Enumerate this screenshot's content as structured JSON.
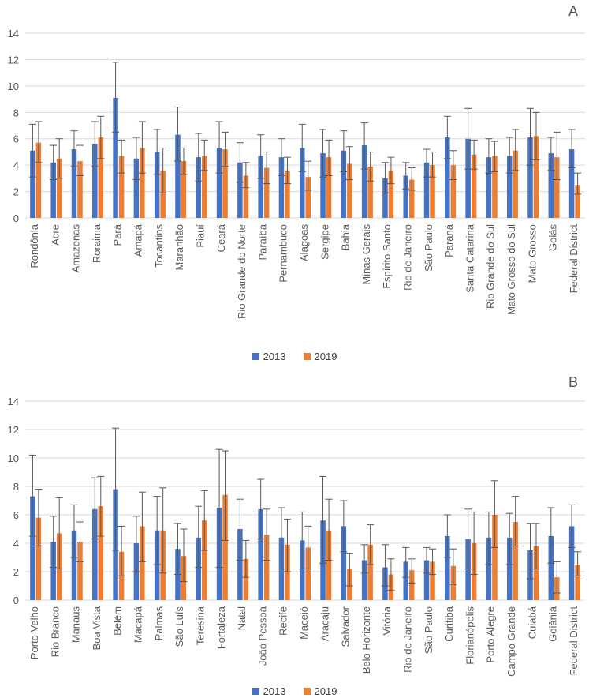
{
  "colors": {
    "s2013": "#4472C4",
    "s2019": "#ED7D31",
    "grid": "#D9D9D9",
    "text": "#595959",
    "err": "#595959"
  },
  "chart_data": [
    {
      "panel": "A",
      "type": "bar",
      "ylim": [
        0,
        14
      ],
      "yticks": [
        0,
        2,
        4,
        6,
        8,
        10,
        12,
        14
      ],
      "grid": true,
      "legend": "bottom-center",
      "categories": [
        "Rondônia",
        "Acre",
        "Amazonas",
        "Roraima",
        "Pará",
        "Amapá",
        "Tocantins",
        "Maranhão",
        "Piauí",
        "Ceará",
        "Rio Grande do Norte",
        "Paraíba",
        "Pernambuco",
        "Alagoas",
        "Sergipe",
        "Bahia",
        "Minas Gerais",
        "Espírito Santo",
        "Rio de Janeiro",
        "São Paulo",
        "Paraná",
        "Santa Catarina",
        "Rio Grande do Sul",
        "Mato Grosso do Sul",
        "Mato Grosso",
        "Goiás",
        "Federal District"
      ],
      "series": [
        {
          "name": "2013",
          "values": [
            5.1,
            4.2,
            5.2,
            5.6,
            9.1,
            4.5,
            5.0,
            6.3,
            4.6,
            5.3,
            4.2,
            4.7,
            4.6,
            5.3,
            4.9,
            5.1,
            5.5,
            3.0,
            3.2,
            4.2,
            6.1,
            6.0,
            4.6,
            4.7,
            6.1,
            4.9,
            5.2
          ],
          "err_low": [
            3.1,
            2.9,
            3.9,
            3.9,
            6.5,
            2.9,
            3.3,
            4.3,
            2.8,
            3.4,
            2.7,
            3.0,
            3.2,
            3.5,
            3.1,
            3.5,
            3.7,
            1.9,
            2.2,
            3.1,
            4.5,
            3.7,
            3.4,
            3.4,
            4.0,
            3.6,
            3.8
          ],
          "err_high": [
            7.1,
            5.5,
            6.6,
            7.3,
            11.8,
            6.1,
            6.7,
            8.4,
            6.4,
            7.3,
            5.7,
            6.3,
            6.0,
            7.1,
            6.7,
            6.6,
            7.2,
            4.2,
            4.2,
            5.2,
            7.7,
            8.3,
            6.0,
            6.1,
            8.3,
            6.1,
            6.7
          ]
        },
        {
          "name": "2019",
          "values": [
            5.7,
            4.5,
            4.3,
            6.1,
            4.7,
            5.3,
            3.6,
            4.3,
            4.7,
            5.2,
            3.2,
            3.8,
            3.6,
            3.1,
            4.6,
            4.1,
            3.9,
            3.6,
            2.9,
            4.0,
            4.0,
            4.8,
            4.7,
            5.1,
            6.2,
            4.6,
            2.5
          ],
          "err_low": [
            4.2,
            3.0,
            3.2,
            4.5,
            3.4,
            3.4,
            1.9,
            3.3,
            3.6,
            3.9,
            2.3,
            2.6,
            2.6,
            2.1,
            3.2,
            2.9,
            2.8,
            2.6,
            2.1,
            3.1,
            2.9,
            3.7,
            3.5,
            3.6,
            4.4,
            2.9,
            1.8
          ],
          "err_high": [
            7.3,
            6.0,
            5.5,
            7.7,
            5.9,
            7.3,
            5.3,
            5.3,
            5.9,
            6.5,
            4.2,
            5.0,
            4.6,
            4.3,
            5.9,
            5.4,
            5.0,
            4.6,
            3.8,
            5.0,
            5.1,
            5.9,
            5.8,
            6.7,
            8.0,
            6.5,
            3.4
          ]
        }
      ]
    },
    {
      "panel": "B",
      "type": "bar",
      "ylim": [
        0,
        14
      ],
      "yticks": [
        0,
        2,
        4,
        6,
        8,
        10,
        12,
        14
      ],
      "grid": true,
      "legend": "bottom-center",
      "categories": [
        "Porto Velho",
        "Rio Branco",
        "Manaus",
        "Boa Vista",
        "Belém",
        "Macapá",
        "Palmas",
        "São Luís",
        "Teresina",
        "Fortaleza",
        "Natal",
        "João Pessoa",
        "Recife",
        "Maceió",
        "Aracaju",
        "Salvador",
        "Belo Horizonte",
        "Vitória",
        "Rio de Janeiro",
        "São Paulo",
        "Curitiba",
        "Florianópolis",
        "Porto Alegre",
        "Campo Grande",
        "Cuiabá",
        "Goiânia",
        "Federal District"
      ],
      "series": [
        {
          "name": "2013",
          "values": [
            7.3,
            4.1,
            4.9,
            6.4,
            7.8,
            4.0,
            4.9,
            3.6,
            4.4,
            6.5,
            5.0,
            6.4,
            4.4,
            4.2,
            5.6,
            5.2,
            2.8,
            2.3,
            2.7,
            2.8,
            4.5,
            4.3,
            4.4,
            4.4,
            3.5,
            4.5,
            5.2
          ],
          "err_low": [
            4.5,
            2.3,
            3.0,
            4.3,
            3.5,
            2.0,
            2.5,
            1.8,
            2.3,
            2.3,
            2.8,
            4.3,
            2.2,
            2.2,
            2.6,
            3.4,
            1.9,
            1.0,
            1.6,
            1.9,
            3.0,
            2.2,
            2.5,
            2.5,
            1.5,
            2.6,
            3.7
          ],
          "err_high": [
            10.2,
            5.9,
            6.7,
            8.6,
            12.1,
            5.9,
            7.3,
            5.4,
            6.6,
            10.6,
            7.1,
            8.5,
            6.5,
            6.2,
            8.7,
            7.0,
            3.9,
            3.9,
            3.7,
            3.7,
            6.0,
            6.4,
            6.2,
            6.1,
            5.4,
            6.5,
            6.7
          ]
        },
        {
          "name": "2019",
          "values": [
            5.8,
            4.7,
            4.1,
            6.6,
            3.4,
            5.2,
            4.9,
            3.1,
            5.6,
            7.4,
            2.9,
            4.6,
            3.9,
            3.7,
            4.9,
            2.2,
            3.9,
            1.8,
            2.1,
            2.7,
            2.4,
            4.0,
            6.0,
            5.5,
            3.8,
            1.6,
            2.5
          ],
          "err_low": [
            3.8,
            2.2,
            2.7,
            4.5,
            1.7,
            2.7,
            1.9,
            1.3,
            3.5,
            4.2,
            1.6,
            2.8,
            2.0,
            2.2,
            2.8,
            1.0,
            2.5,
            0.7,
            1.2,
            1.8,
            1.1,
            1.8,
            3.7,
            3.8,
            2.2,
            0.5,
            1.7
          ],
          "err_high": [
            7.8,
            7.2,
            5.5,
            8.7,
            5.2,
            7.6,
            7.9,
            5.0,
            7.7,
            10.5,
            4.2,
            6.4,
            5.7,
            5.2,
            7.1,
            3.3,
            5.3,
            2.9,
            2.9,
            3.6,
            3.6,
            6.2,
            8.4,
            7.3,
            5.4,
            2.7,
            3.4
          ]
        }
      ]
    }
  ]
}
